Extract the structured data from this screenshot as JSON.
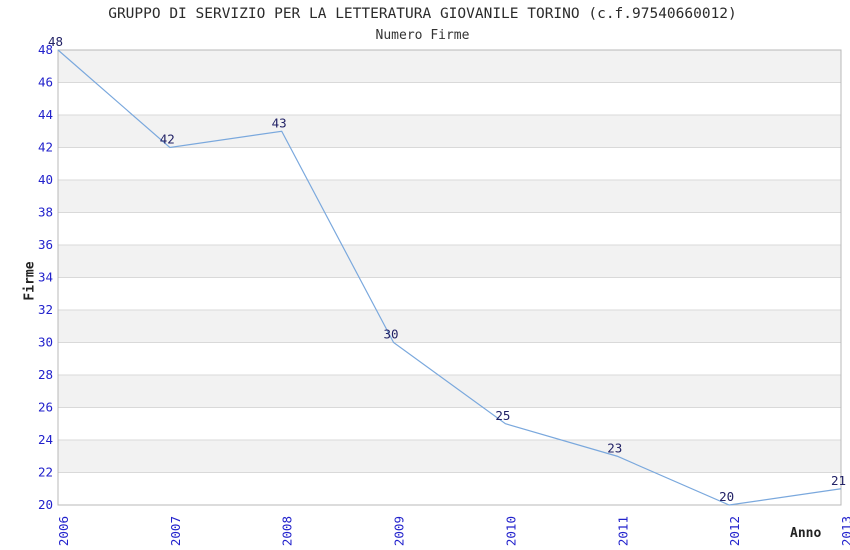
{
  "figure": {
    "title": "GRUPPO DI SERVIZIO PER LA LETTERATURA GIOVANILE TORINO (c.f.97540660012)",
    "subtitle": "Numero Firme"
  },
  "chart_data": {
    "type": "line",
    "title": "GRUPPO DI SERVIZIO PER LA LETTERATURA GIOVANILE TORINO (c.f.97540660012)",
    "subtitle": "Numero Firme",
    "xlabel": "Anno",
    "ylabel": "Firme",
    "categories": [
      "2006",
      "2007",
      "2008",
      "2009",
      "2010",
      "2011",
      "2012",
      "2013"
    ],
    "series": [
      {
        "name": "Numero Firme",
        "values": [
          48,
          42,
          43,
          30,
          25,
          23,
          20,
          21
        ]
      }
    ],
    "data_labels": true,
    "ylim": [
      20,
      48
    ],
    "ytick_step": 2,
    "grid": "horizontal",
    "legend": "none",
    "band_fill": "alternating horizontal stripes, gray topmost",
    "colors": {
      "line": "#7aa8dd",
      "tick_label": "#2222cc",
      "data_label": "#222266",
      "band": "#f2f2f2",
      "grid": "#d9d9d9",
      "border": "#b8b8b8",
      "title": "#2b2b2b",
      "axis_label": "#222222"
    }
  }
}
